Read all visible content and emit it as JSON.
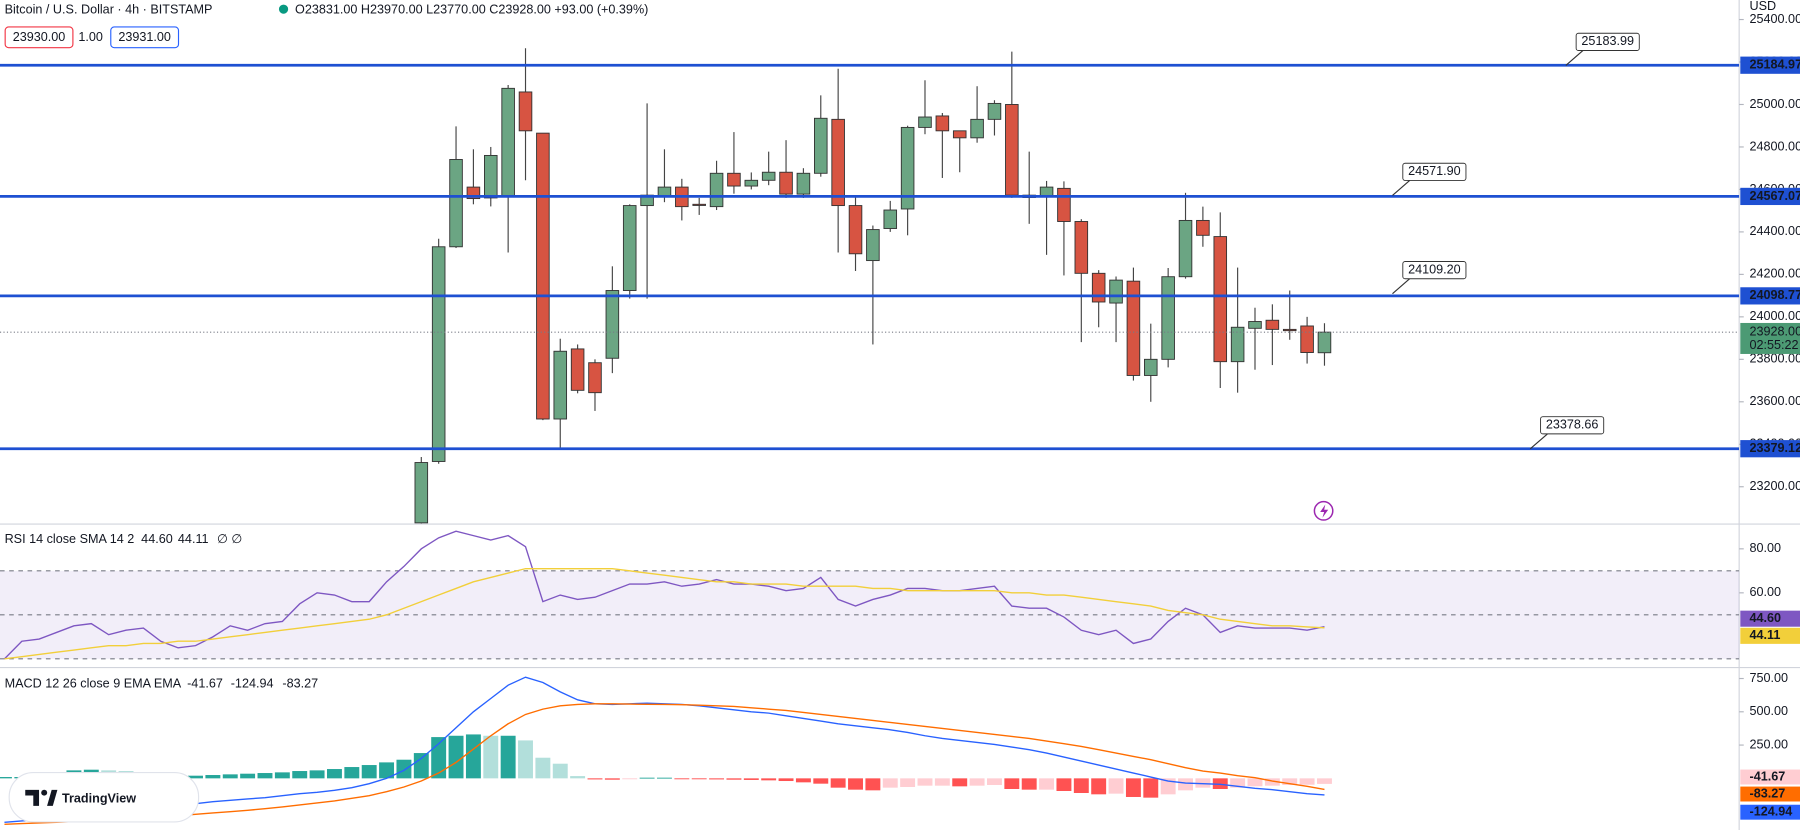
{
  "header": {
    "symbol": "Bitcoin / U.S. Dollar · 4h · BITSTAMP",
    "ohlc": "O23831.00 H23970.00 L23770.00 C23928.00 +93.00 (+0.39%)",
    "bid": "23930.00",
    "spread": "1.00",
    "ask": "23931.00",
    "currency": "USD",
    "logo": "TradingView"
  },
  "chart_data": [
    {
      "type": "candlestick",
      "open": [
        23030,
        23319,
        24330,
        24611,
        24560,
        24568,
        25059,
        24865,
        23519,
        23849,
        23784,
        23805,
        24124,
        24524,
        24568,
        24611,
        24530,
        24519,
        24676,
        24616,
        24643,
        24681,
        24578,
        24676,
        24930,
        24524,
        24265,
        24416,
        24508,
        24892,
        24946,
        24876,
        24843,
        24930,
        25000,
        24573,
        24568,
        24605,
        24449,
        24205,
        24065,
        24168,
        23724,
        23800,
        24189,
        24454,
        24378,
        23789,
        23946,
        23984,
        23941,
        23957,
        23831
      ],
      "high": [
        23340,
        24368,
        24897,
        24789,
        24800,
        25092,
        25265,
        24865,
        23897,
        23870,
        23800,
        24238,
        24530,
        25005,
        24789,
        24650,
        24560,
        24735,
        24870,
        24680,
        24778,
        24832,
        24700,
        25043,
        25168,
        24573,
        24430,
        24546,
        24900,
        25114,
        24960,
        24870,
        25086,
        25020,
        25249,
        24778,
        24640,
        24638,
        24460,
        24220,
        24190,
        24232,
        23968,
        24230,
        24584,
        24519,
        24492,
        24232,
        24043,
        24059,
        24124,
        24000,
        23970
      ],
      "low": [
        23000,
        23308,
        24324,
        24530,
        24520,
        24303,
        24643,
        23514,
        23384,
        23640,
        23557,
        23735,
        24086,
        24086,
        24540,
        24454,
        24480,
        24503,
        24580,
        24600,
        24620,
        24560,
        24560,
        24660,
        24303,
        24216,
        23870,
        24400,
        24384,
        24860,
        24654,
        24681,
        24820,
        24854,
        24560,
        24438,
        24292,
        24195,
        23881,
        23951,
        23881,
        23700,
        23600,
        23762,
        24180,
        24330,
        23665,
        23643,
        23751,
        23773,
        23892,
        23780,
        23770
      ],
      "close": [
        23314,
        24330,
        24741,
        24557,
        24760,
        25076,
        24876,
        23519,
        23838,
        23654,
        23643,
        24124,
        24524,
        24573,
        24611,
        24519,
        24525,
        24676,
        24616,
        24643,
        24681,
        24578,
        24676,
        24935,
        24524,
        24297,
        24411,
        24503,
        24892,
        24941,
        24876,
        24843,
        24930,
        25005,
        24573,
        24562,
        24611,
        24449,
        24205,
        24070,
        24173,
        23724,
        23800,
        24189,
        24454,
        24384,
        23789,
        23951,
        23978,
        23941,
        23935,
        23832,
        23928
      ],
      "up_color": "#6ba583",
      "down_color": "#d75442",
      "ylim": [
        23027,
        25492
      ],
      "yticks": [
        {
          "value": 23200,
          "label": "23200.00"
        },
        {
          "value": 23400,
          "label": "23400.00"
        },
        {
          "value": 23600,
          "label": "23600.00"
        },
        {
          "value": 23800,
          "label": "23800.00"
        },
        {
          "value": 24000,
          "label": "24000.00"
        },
        {
          "value": 24200,
          "label": "24200.00"
        },
        {
          "value": 24400,
          "label": "24400.00"
        },
        {
          "value": 24600,
          "label": "24600.00"
        },
        {
          "value": 24800,
          "label": "24800.00"
        },
        {
          "value": 25000,
          "label": "25000.00"
        },
        {
          "value": 25200,
          "label": "25200.00"
        },
        {
          "value": 25400,
          "label": "25400.00"
        }
      ],
      "levels": [
        25184.97,
        24567.07,
        24098.77,
        23379.12
      ],
      "level_color": "#1e50d2",
      "callouts": [
        25183.99,
        {
          "value": 24571.9,
          "label": "24571.90"
        },
        {
          "value": 24109.2,
          "label": "24109.20"
        },
        23378.66
      ],
      "last_price": {
        "value": 23928,
        "label": "23928.00"
      },
      "countdown": "02:55:22",
      "last_color": "#4c9a74"
    },
    {
      "type": "line",
      "title": "RSI 14 close SMA 14 2",
      "flags": "∅ ∅",
      "series": [
        {
          "color": "#7e57c2",
          "last_label": "44.60",
          "values": [
            30,
            38,
            39,
            42,
            45,
            46,
            41,
            43,
            44,
            38,
            35,
            36,
            40,
            45,
            43,
            46,
            47,
            55,
            60,
            59,
            56,
            56,
            65,
            72,
            80,
            85,
            88,
            86,
            84,
            86,
            81,
            56,
            59,
            57,
            58,
            61,
            64,
            64,
            65,
            63,
            64,
            66,
            64,
            64,
            63,
            61,
            62,
            67,
            57,
            54,
            57,
            59,
            62,
            62,
            61,
            61,
            62,
            63,
            54,
            53,
            53,
            49,
            43,
            41,
            43,
            37,
            39,
            47,
            53,
            50,
            42,
            45,
            44,
            44,
            44,
            43,
            44.6
          ]
        },
        {
          "color": "#f2cf3a",
          "last_label": "44.11",
          "values": [
            30,
            31,
            32,
            33,
            34,
            35,
            36,
            36,
            37,
            37,
            38,
            38,
            39,
            40,
            41,
            42,
            43,
            44,
            45,
            46,
            47,
            48,
            50,
            53,
            56,
            59,
            62,
            65,
            67,
            69,
            71,
            71,
            71,
            71,
            71,
            71,
            70,
            69,
            68,
            67,
            66,
            65,
            65,
            64,
            64,
            64,
            63,
            63,
            63,
            63,
            62,
            62,
            61,
            61,
            61,
            61,
            61,
            61,
            60,
            60,
            59,
            59,
            58,
            57,
            56,
            55,
            54,
            52,
            51,
            50,
            48,
            47,
            46,
            45,
            45,
            44.5,
            44.11
          ]
        }
      ],
      "ylim": [
        26.3,
        91
      ],
      "yticks": [
        {
          "value": 60,
          "label": "60.00"
        },
        {
          "value": 80,
          "label": "80.00"
        }
      ],
      "band": [
        30,
        70
      ],
      "midline": 50,
      "band_color": "#7e57c2"
    },
    {
      "type": "macd",
      "title": "MACD 12 26 close 9 EMA EMA",
      "histogram": {
        "values": [
          10,
          10,
          15,
          20,
          60,
          65,
          60,
          55,
          45,
          20,
          15,
          20,
          25,
          30,
          35,
          40,
          45,
          55,
          60,
          70,
          85,
          100,
          120,
          140,
          190,
          310,
          320,
          330,
          320,
          320,
          285,
          155,
          110,
          17,
          -8,
          -10,
          -5,
          5,
          5,
          -3,
          -5,
          -8,
          -10,
          -12,
          -15,
          -20,
          -30,
          -40,
          -70,
          -85,
          -90,
          -70,
          -65,
          -55,
          -55,
          -60,
          -55,
          -50,
          -80,
          -85,
          -85,
          -95,
          -110,
          -120,
          -115,
          -140,
          -145,
          -120,
          -90,
          -70,
          -80,
          -70,
          -60,
          -55,
          -50,
          -48,
          -41.67
        ],
        "colors": [
          "#26a69a",
          "#b2dfdb",
          "#ff5252",
          "#ffcdd2"
        ]
      },
      "series": [
        {
          "color": "#2962ff",
          "values": [
            -330,
            -320,
            -310,
            -300,
            -290,
            -270,
            -250,
            -235,
            -225,
            -215,
            -205,
            -190,
            -175,
            -165,
            -155,
            -145,
            -130,
            -115,
            -105,
            -90,
            -70,
            -40,
            0,
            60,
            150,
            260,
            380,
            500,
            600,
            700,
            760,
            720,
            650,
            590,
            560,
            555,
            560,
            565,
            560,
            555,
            545,
            530,
            515,
            500,
            490,
            470,
            450,
            430,
            410,
            395,
            380,
            365,
            345,
            320,
            300,
            285,
            270,
            255,
            235,
            215,
            190,
            160,
            130,
            100,
            70,
            40,
            10,
            -20,
            -35,
            -40,
            -45,
            -60,
            -75,
            -85,
            -100,
            -115,
            -124.94
          ]
        },
        {
          "color": "#ff6d00",
          "values": [
            -345,
            -340,
            -335,
            -330,
            -325,
            -320,
            -312,
            -305,
            -297,
            -290,
            -280,
            -270,
            -260,
            -250,
            -240,
            -228,
            -215,
            -200,
            -185,
            -170,
            -150,
            -130,
            -100,
            -65,
            -20,
            40,
            120,
            220,
            320,
            410,
            480,
            520,
            545,
            555,
            560,
            560,
            558,
            556,
            555,
            553,
            550,
            545,
            540,
            530,
            520,
            510,
            495,
            480,
            465,
            450,
            435,
            420,
            405,
            390,
            375,
            360,
            345,
            330,
            315,
            300,
            280,
            260,
            240,
            215,
            190,
            165,
            140,
            110,
            80,
            55,
            40,
            20,
            5,
            -20,
            -40,
            -60,
            -83.27
          ]
        }
      ],
      "ylim": [
        -388,
        828
      ],
      "yticks": [
        {
          "value": 250,
          "label": "250.00"
        },
        {
          "value": 500,
          "label": "500.00"
        },
        {
          "value": 750,
          "label": "750.00"
        }
      ]
    }
  ]
}
